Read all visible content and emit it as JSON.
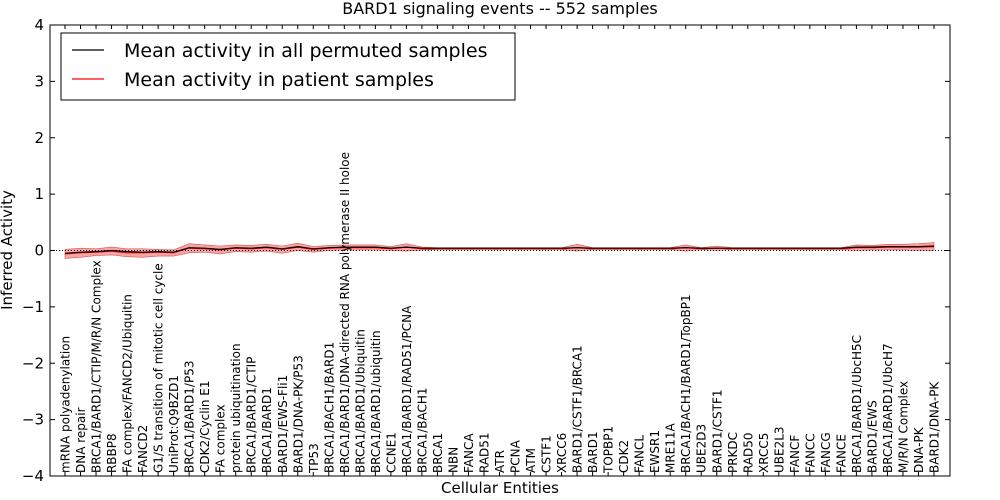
{
  "chart_data": {
    "type": "line",
    "title": "BARD1 signaling events -- 552 samples",
    "xlabel": "Cellular Entities",
    "ylabel": "Inferred Activity",
    "ylim": [
      -4,
      4
    ],
    "yticks": [
      -4,
      -3,
      -2,
      -1,
      0,
      1,
      2,
      3,
      4
    ],
    "ytick_labels": [
      "−4",
      "−3",
      "−2",
      "−1",
      "0",
      "1",
      "2",
      "3",
      "4"
    ],
    "legend": {
      "placement": "top-left",
      "entries": [
        {
          "label": "Mean activity in all permuted samples",
          "color": "#000000"
        },
        {
          "label": "Mean activity in patient samples",
          "color": "#ff0000"
        }
      ]
    },
    "categories": [
      "mRNA polyadenylation",
      "DNA repair",
      "BRCA1/BARD1/CTIP/M/R/N Complex",
      "RBBP8",
      "FA complex/FANCD2/Ubiquitin",
      "FANCD2",
      "G1/S transition of mitotic cell cycle",
      "UniProt:Q9BZD1",
      "BRCA1/BARD1/P53",
      "CDK2/Cyclin E1",
      "FA complex",
      "protein ubiquitination",
      "BRCA1/BARD1/CTIP",
      "BRCA1/BARD1",
      "BARD1/EWS-Fli1",
      "BARD1/DNA-PK/P53",
      "TP53",
      "BRCA1/BACH1/BARD1",
      "BRCA1/BARD1/DNA-directed RNA polymerase II holoe",
      "BRCA1/BARD1/Ubiquitin",
      "BRCA1/BARD1/ubiquitin",
      "CCNE1",
      "BRCA1/BARD1/RAD51/PCNA",
      "BRCA1/BACH1",
      "BRCA1",
      "NBN",
      "FANCA",
      "RAD51",
      "ATR",
      "PCNA",
      "ATM",
      "CSTF1",
      "XRCC6",
      "BARD1/CSTF1/BRCA1",
      "BARD1",
      "TOPBP1",
      "CDK2",
      "FANCL",
      "EWSR1",
      "MRE11A",
      "BRCA1/BACH1/BARD1/TopBP1",
      "UBE2D3",
      "BARD1/CSTF1",
      "PRKDC",
      "RAD50",
      "XRCC5",
      "UBE2L3",
      "FANCF",
      "FANCC",
      "FANCG",
      "FANCE",
      "BRCA1/BARD1/UbcH5C",
      "BARD1/EWS",
      "BRCA1/BARD1/UbcH7",
      "M/R/N Complex",
      "DNA-PK",
      "BARD1/DNA-PK"
    ],
    "series": [
      {
        "name": "Mean activity in all permuted samples",
        "color": "#000000",
        "values": [
          -0.05,
          -0.03,
          -0.02,
          0.0,
          -0.02,
          -0.03,
          -0.02,
          -0.03,
          0.05,
          0.04,
          0.02,
          0.05,
          0.04,
          0.06,
          0.03,
          0.07,
          0.03,
          0.05,
          0.06,
          0.06,
          0.06,
          0.04,
          0.06,
          0.04,
          0.04,
          0.04,
          0.04,
          0.04,
          0.04,
          0.04,
          0.04,
          0.04,
          0.04,
          0.05,
          0.04,
          0.04,
          0.04,
          0.04,
          0.04,
          0.04,
          0.05,
          0.04,
          0.04,
          0.04,
          0.04,
          0.04,
          0.04,
          0.04,
          0.04,
          0.04,
          0.04,
          0.06,
          0.06,
          0.07,
          0.07,
          0.07,
          0.08
        ]
      },
      {
        "name": "Mean activity in patient samples",
        "color": "#ff0000",
        "values": [
          -0.06,
          -0.04,
          -0.03,
          -0.01,
          -0.04,
          -0.04,
          -0.03,
          -0.04,
          0.04,
          0.03,
          0.01,
          0.04,
          0.03,
          0.05,
          0.02,
          0.06,
          0.02,
          0.04,
          0.05,
          0.05,
          0.05,
          0.03,
          0.06,
          0.03,
          0.03,
          0.03,
          0.03,
          0.03,
          0.03,
          0.03,
          0.03,
          0.03,
          0.03,
          0.05,
          0.03,
          0.03,
          0.03,
          0.03,
          0.03,
          0.03,
          0.05,
          0.03,
          0.04,
          0.03,
          0.03,
          0.03,
          0.03,
          0.03,
          0.03,
          0.03,
          0.03,
          0.05,
          0.05,
          0.06,
          0.06,
          0.06,
          0.07
        ],
        "band_upper": [
          0.02,
          0.04,
          0.03,
          0.06,
          0.03,
          0.03,
          0.02,
          0.01,
          0.12,
          0.1,
          0.08,
          0.1,
          0.09,
          0.11,
          0.08,
          0.13,
          0.07,
          0.09,
          0.1,
          0.1,
          0.1,
          0.07,
          0.12,
          0.06,
          0.05,
          0.05,
          0.05,
          0.05,
          0.05,
          0.05,
          0.05,
          0.05,
          0.05,
          0.11,
          0.05,
          0.05,
          0.05,
          0.05,
          0.05,
          0.05,
          0.1,
          0.05,
          0.08,
          0.05,
          0.05,
          0.05,
          0.05,
          0.05,
          0.05,
          0.05,
          0.05,
          0.1,
          0.09,
          0.11,
          0.11,
          0.12,
          0.14
        ],
        "band_lower": [
          -0.14,
          -0.12,
          -0.09,
          -0.08,
          -0.11,
          -0.12,
          -0.1,
          -0.1,
          -0.04,
          -0.03,
          -0.06,
          -0.02,
          -0.03,
          -0.01,
          -0.05,
          0.0,
          -0.03,
          0.0,
          0.01,
          0.01,
          0.01,
          0.0,
          -0.01,
          0.01,
          0.02,
          0.02,
          0.02,
          0.02,
          0.02,
          0.02,
          0.02,
          0.02,
          0.02,
          -0.01,
          0.02,
          0.02,
          0.02,
          0.02,
          0.02,
          0.02,
          -0.01,
          0.02,
          0.0,
          0.02,
          0.02,
          0.02,
          0.02,
          0.02,
          0.02,
          0.02,
          0.02,
          0.0,
          0.01,
          0.01,
          0.01,
          0.0,
          0.0
        ]
      }
    ],
    "reference_line": {
      "y": 0,
      "style": "dotted"
    }
  }
}
